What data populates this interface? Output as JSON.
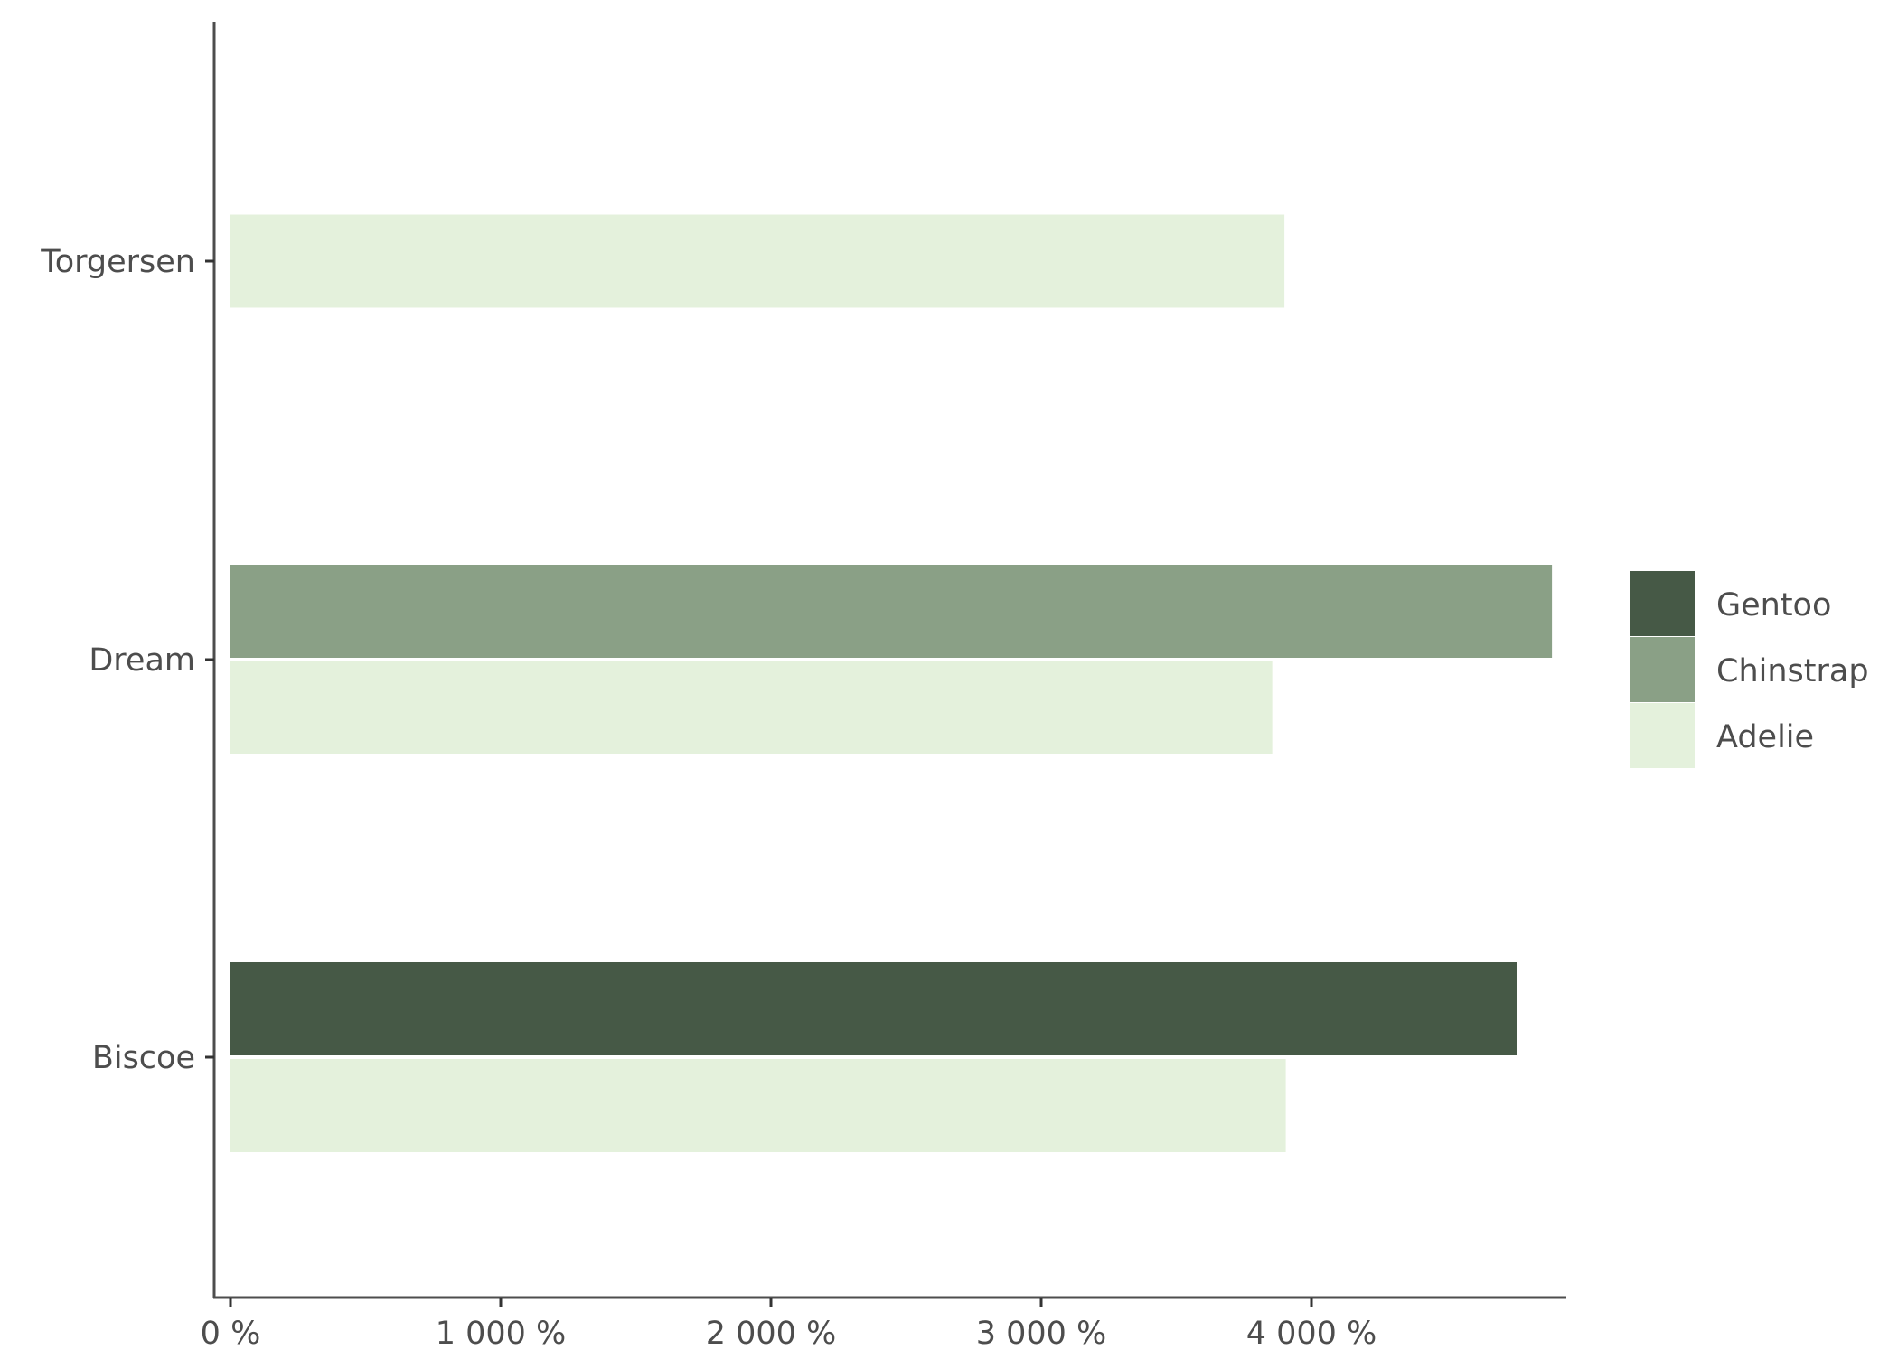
{
  "chart_data": {
    "type": "bar",
    "orientation": "horizontal",
    "categories": [
      "Torgersen",
      "Dream",
      "Biscoe"
    ],
    "series": [
      {
        "name": "Gentoo",
        "color": "#465946",
        "values": [
          null,
          null,
          4760
        ]
      },
      {
        "name": "Chinstrap",
        "color": "#8aa086",
        "values": [
          null,
          4890,
          null
        ]
      },
      {
        "name": "Adelie",
        "color": "#e4f1dc",
        "values": [
          3900,
          3855,
          3905
        ]
      }
    ],
    "x_ticks": [
      0,
      1000,
      2000,
      3000,
      4000
    ],
    "x_tick_labels": [
      "0 %",
      "1 000 %",
      "2 000 %",
      "3 000 %",
      "4 000 %"
    ],
    "xlim": [
      -55,
      4945
    ],
    "title": "",
    "xlabel": "",
    "ylabel": "",
    "grid": false,
    "legend_position": "right",
    "legend": [
      "Gentoo",
      "Chinstrap",
      "Adelie"
    ]
  }
}
